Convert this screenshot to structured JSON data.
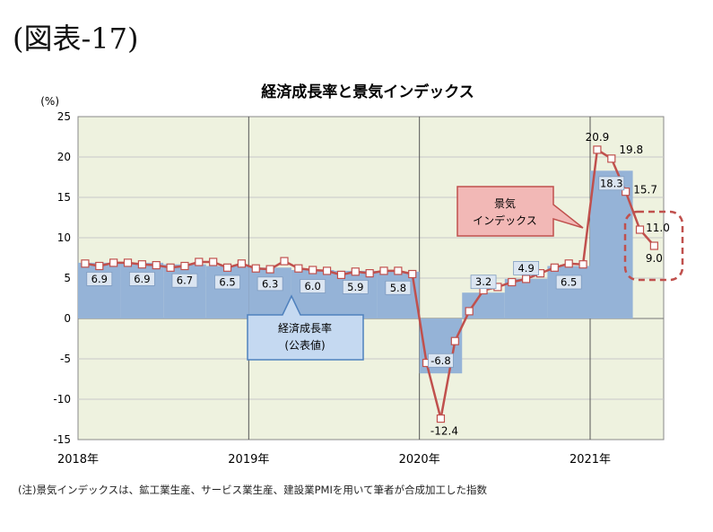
{
  "figure_label": "(図表-17)",
  "note": "(注)景気インデックスは、鉱工業生産、サービス業生産、建設業PMIを用いて筆者が合成加工した指数",
  "colors": {
    "plot_bg": "#eef2df",
    "bar_fill": "#95b3d7",
    "bar_label_fill": "#dbe5f1",
    "index_line": "#c0504d",
    "callout_red_fill": "#f2b8b6",
    "callout_blue_fill": "#c5d9f1"
  },
  "chart_data": {
    "type": "bar+line",
    "title": "経済成長率と景気インデックス",
    "ylabel": "(%)",
    "ylim": [
      -15,
      25
    ],
    "yticks": [
      -15,
      -10,
      -5,
      0,
      5,
      10,
      15,
      20,
      25
    ],
    "xlim": [
      0,
      40
    ],
    "x_labels": [
      {
        "label": "2018年",
        "x": 0
      },
      {
        "label": "2019年",
        "x": 12
      },
      {
        "label": "2020年",
        "x": 24
      },
      {
        "label": "2021年",
        "x": 36
      }
    ],
    "gdp_series": {
      "name": "経済成長率(公表値)",
      "values": [
        {
          "start": 0,
          "end": 3,
          "value": 6.9,
          "label": "6.9"
        },
        {
          "start": 3,
          "end": 6,
          "value": 6.9,
          "label": "6.9"
        },
        {
          "start": 6,
          "end": 9,
          "value": 6.7,
          "label": "6.7"
        },
        {
          "start": 9,
          "end": 12,
          "value": 6.5,
          "label": "6.5"
        },
        {
          "start": 12,
          "end": 15,
          "value": 6.3,
          "label": "6.3"
        },
        {
          "start": 15,
          "end": 18,
          "value": 6.0,
          "label": "6.0"
        },
        {
          "start": 18,
          "end": 21,
          "value": 5.9,
          "label": "5.9"
        },
        {
          "start": 21,
          "end": 24,
          "value": 5.8,
          "label": "5.8"
        },
        {
          "start": 24,
          "end": 27,
          "value": -6.8,
          "label": "-6.8"
        },
        {
          "start": 27,
          "end": 30,
          "value": 3.2,
          "label": "3.2"
        },
        {
          "start": 30,
          "end": 33,
          "value": 4.9,
          "label": "4.9"
        },
        {
          "start": 33,
          "end": 36,
          "value": 6.5,
          "label": "6.5"
        },
        {
          "start": 36,
          "end": 39,
          "value": 18.3,
          "label": "18.3"
        }
      ]
    },
    "index_series": {
      "name": "景気インデックス",
      "points": [
        {
          "x": 0.5,
          "y": 6.8
        },
        {
          "x": 1.5,
          "y": 6.5
        },
        {
          "x": 2.5,
          "y": 6.9
        },
        {
          "x": 3.5,
          "y": 6.9
        },
        {
          "x": 4.5,
          "y": 6.7
        },
        {
          "x": 5.5,
          "y": 6.6
        },
        {
          "x": 6.5,
          "y": 6.3
        },
        {
          "x": 7.5,
          "y": 6.5
        },
        {
          "x": 8.5,
          "y": 7.0
        },
        {
          "x": 9.5,
          "y": 7.0
        },
        {
          "x": 10.5,
          "y": 6.3
        },
        {
          "x": 11.5,
          "y": 6.8
        },
        {
          "x": 12.5,
          "y": 6.2
        },
        {
          "x": 13.5,
          "y": 6.1
        },
        {
          "x": 14.5,
          "y": 7.1
        },
        {
          "x": 15.5,
          "y": 6.2
        },
        {
          "x": 16.5,
          "y": 6.0
        },
        {
          "x": 17.5,
          "y": 5.9
        },
        {
          "x": 18.5,
          "y": 5.4
        },
        {
          "x": 19.5,
          "y": 5.8
        },
        {
          "x": 20.5,
          "y": 5.6
        },
        {
          "x": 21.5,
          "y": 5.9
        },
        {
          "x": 22.5,
          "y": 5.9
        },
        {
          "x": 23.5,
          "y": 5.5
        },
        {
          "x": 24.5,
          "y": -5.5
        },
        {
          "x": 25.5,
          "y": -12.4,
          "label": "-12.4"
        },
        {
          "x": 26.5,
          "y": -2.8
        },
        {
          "x": 27.5,
          "y": 0.9
        },
        {
          "x": 28.5,
          "y": 3.5
        },
        {
          "x": 29.5,
          "y": 3.9
        },
        {
          "x": 30.5,
          "y": 4.5
        },
        {
          "x": 31.5,
          "y": 4.9
        },
        {
          "x": 32.5,
          "y": 5.6
        },
        {
          "x": 33.5,
          "y": 6.3
        },
        {
          "x": 34.5,
          "y": 6.8
        },
        {
          "x": 35.5,
          "y": 6.7
        },
        {
          "x": 36.5,
          "y": 20.9,
          "label": "20.9"
        },
        {
          "x": 37.5,
          "y": 19.8,
          "label": "19.8"
        },
        {
          "x": 38.5,
          "y": 15.7,
          "label": "15.7"
        },
        {
          "x": 39.5,
          "y": 11.0,
          "label": "11.0"
        },
        {
          "x": 40.5,
          "y": 9.0,
          "label": "9.0"
        }
      ]
    },
    "annotations": {
      "index_callout": [
        "景気",
        "インデックス"
      ],
      "gdp_callout": [
        "経済成長率",
        "(公表値)"
      ]
    }
  }
}
